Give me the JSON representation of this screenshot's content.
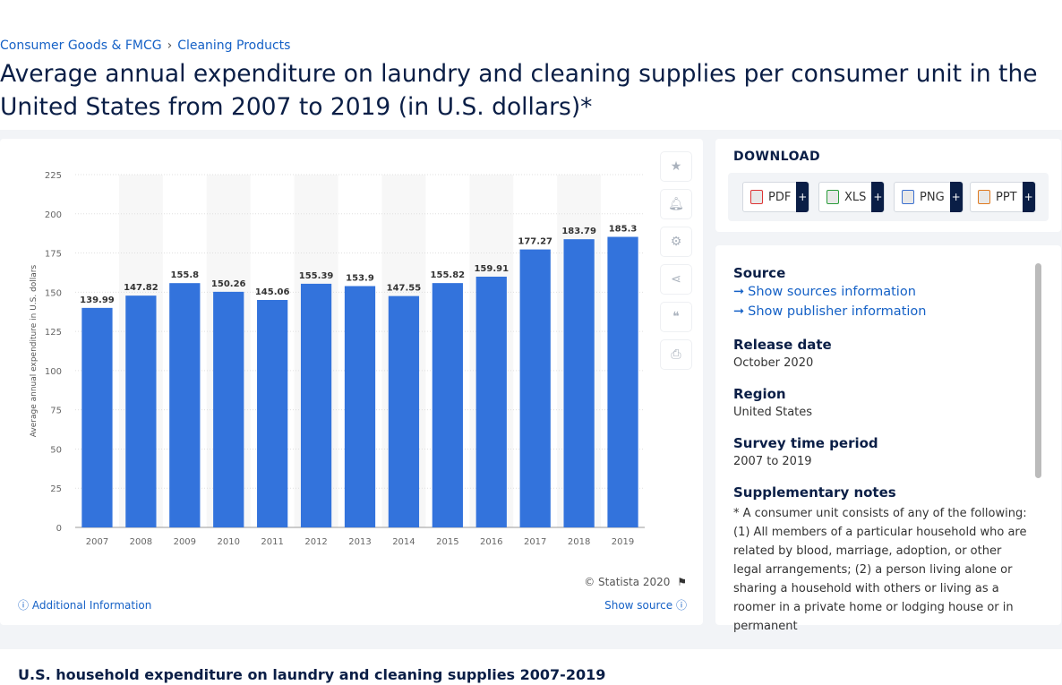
{
  "breadcrumb": {
    "item1": "Consumer Goods & FMCG",
    "separator": "›",
    "item2": "Cleaning Products"
  },
  "page_title": "Average annual expenditure on laundry and cleaning supplies per consumer unit in the United States from 2007 to 2019 (in U.S. dollars)*",
  "chart_data": {
    "type": "bar",
    "categories": [
      "2007",
      "2008",
      "2009",
      "2010",
      "2011",
      "2012",
      "2013",
      "2014",
      "2015",
      "2016",
      "2017",
      "2018",
      "2019"
    ],
    "values": [
      139.99,
      147.82,
      155.8,
      150.26,
      145.06,
      155.39,
      153.9,
      147.55,
      155.82,
      159.91,
      177.27,
      183.79,
      185.3
    ],
    "data_labels": [
      "139.99",
      "147.82",
      "155.8",
      "150.26",
      "145.06",
      "155.39",
      "153.9",
      "147.55",
      "155.82",
      "159.91",
      "177.27",
      "183.79",
      "185.3"
    ],
    "ylabel": "Average annual expenditure in U.S. dollars",
    "xlabel": "",
    "ylim": [
      0,
      225
    ],
    "yticks": [
      0,
      25,
      50,
      75,
      100,
      125,
      150,
      175,
      200,
      225
    ],
    "grid": true,
    "bar_color": "#3373dc"
  },
  "chart_footer": {
    "copyright": "© Statista 2020",
    "additional_info": "Additional Information",
    "show_source": "Show source"
  },
  "tools": [
    "star-icon",
    "bell-icon",
    "gear-icon",
    "share-icon",
    "quote-icon",
    "print-icon"
  ],
  "download": {
    "heading": "DOWNLOAD",
    "buttons": [
      {
        "label": "PDF",
        "plus": "+"
      },
      {
        "label": "XLS",
        "plus": "+"
      },
      {
        "label": "PNG",
        "plus": "+"
      },
      {
        "label": "PPT",
        "plus": "+"
      }
    ]
  },
  "info": {
    "source_label": "Source",
    "show_sources": "Show sources information",
    "show_publisher": "Show publisher information",
    "release_label": "Release date",
    "release_value": "October 2020",
    "region_label": "Region",
    "region_value": "United States",
    "survey_label": "Survey time period",
    "survey_value": "2007 to 2019",
    "notes_label": "Supplementary notes",
    "notes_value": "* A consumer unit consists of any of the following: (1) All members of a particular household who are related by blood, marriage, adoption, or other legal arrangements; (2) a person living alone or sharing a household with others or living as a roomer in a private home or lodging house or in permanent"
  },
  "bottom_title": "U.S. household expenditure on laundry and cleaning supplies 2007-2019"
}
